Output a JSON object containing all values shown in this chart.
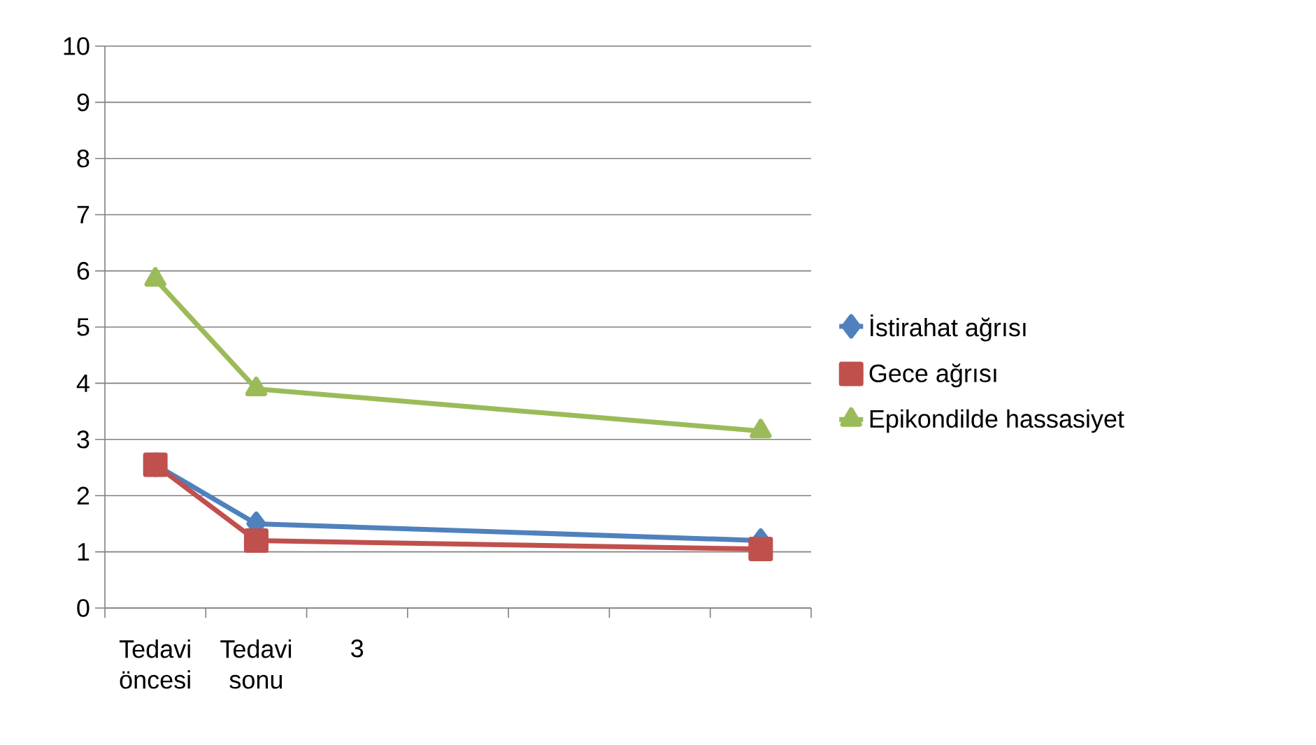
{
  "chart_data": {
    "type": "line",
    "categories": [
      "Tedavi öncesi",
      "Tedavi sonu",
      "3",
      null,
      null,
      null,
      null
    ],
    "series": [
      {
        "name": "İstirahat ağrısı",
        "color": "#4f81bd",
        "marker": "diamond",
        "values": [
          2.55,
          1.5,
          null,
          null,
          null,
          null,
          1.2
        ]
      },
      {
        "name": "Gece ağrısı",
        "color": "#c0504d",
        "marker": "square",
        "values": [
          2.55,
          1.2,
          null,
          null,
          null,
          null,
          1.05
        ]
      },
      {
        "name": "Epikondilde hassasiyet",
        "color": "#9bbb59",
        "marker": "triangle",
        "values": [
          5.85,
          3.9,
          null,
          null,
          null,
          null,
          3.15
        ]
      }
    ],
    "ylim": [
      0,
      10
    ],
    "yticks": [
      0,
      1,
      2,
      3,
      4,
      5,
      6,
      7,
      8,
      9,
      10
    ],
    "grid": "y",
    "legend": "right",
    "line_style": "solid"
  }
}
